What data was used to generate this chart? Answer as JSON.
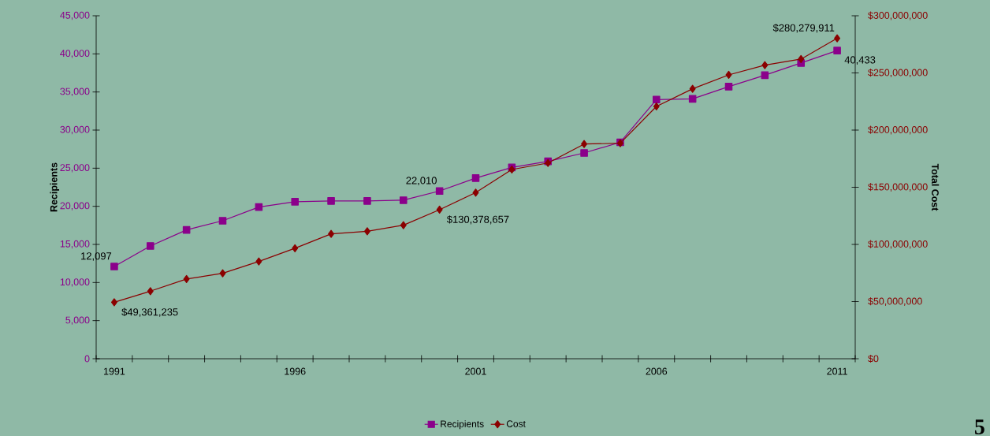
{
  "chart_data": {
    "type": "line",
    "ylabel": "Recipients",
    "y2label": "Total Cost",
    "categories": [
      "1991",
      null,
      null,
      null,
      null,
      "1996",
      null,
      null,
      null,
      null,
      "2001",
      null,
      null,
      null,
      null,
      "2006",
      null,
      null,
      null,
      null,
      "2011"
    ],
    "ylim": [
      0,
      45000
    ],
    "yticks": [
      0,
      {
        "value": 5000,
        "label": "5,000"
      },
      {
        "value": 10000,
        "label": "10,000"
      },
      {
        "value": 15000,
        "label": "15,000"
      },
      {
        "value": 20000,
        "label": "20,000"
      },
      {
        "value": 25000,
        "label": "25,000"
      },
      {
        "value": 30000,
        "label": "30,000"
      },
      {
        "value": 35000,
        "label": "35,000"
      },
      {
        "value": 40000,
        "label": "40,000"
      },
      {
        "value": 45000,
        "label": "45,000"
      }
    ],
    "y2lim": [
      0,
      300000000
    ],
    "y2ticks": [
      {
        "value": 0,
        "label": "$0"
      },
      {
        "value": 50000000,
        "label": "$50,000,000"
      },
      {
        "value": 100000000,
        "label": "$100,000,000"
      },
      {
        "value": 150000000,
        "label": "$150,000,000"
      },
      {
        "value": 200000000,
        "label": "$200,000,000"
      },
      {
        "value": 250000000,
        "label": "$250,000,000"
      },
      {
        "value": 300000000,
        "label": "$300,000,000"
      }
    ],
    "series": [
      {
        "name": "Recipients",
        "color": "#8b008b",
        "marker": "square",
        "values": [
          12097,
          14800,
          16900,
          18100,
          19900,
          20600,
          20700,
          20700,
          20800,
          22010,
          23700,
          25100,
          25900,
          27000,
          28400,
          34000,
          34100,
          35700,
          37200,
          38800,
          40433
        ],
        "value_labels": [
          "12,097",
          null,
          null,
          null,
          null,
          null,
          null,
          null,
          null,
          "22,010",
          null,
          null,
          null,
          null,
          null,
          null,
          null,
          null,
          null,
          null,
          "40,433"
        ]
      },
      {
        "name": "Cost",
        "color": "#8b0000",
        "marker": "diamond",
        "axis": "y2",
        "values": [
          49361235,
          59100000,
          69700000,
          74700000,
          85100000,
          96600000,
          109200000,
          111500000,
          116800000,
          130378657,
          145300000,
          165500000,
          171200000,
          187800000,
          188500000,
          220700000,
          236100000,
          248300000,
          256800000,
          262100000,
          280279911
        ],
        "value_labels": [
          "$49,361,235",
          null,
          null,
          null,
          null,
          null,
          null,
          null,
          null,
          "$130,378,657",
          null,
          null,
          null,
          null,
          null,
          null,
          null,
          null,
          null,
          null,
          "$280,279,911"
        ]
      }
    ],
    "legend": "bottom",
    "annotations": [
      "5"
    ]
  }
}
